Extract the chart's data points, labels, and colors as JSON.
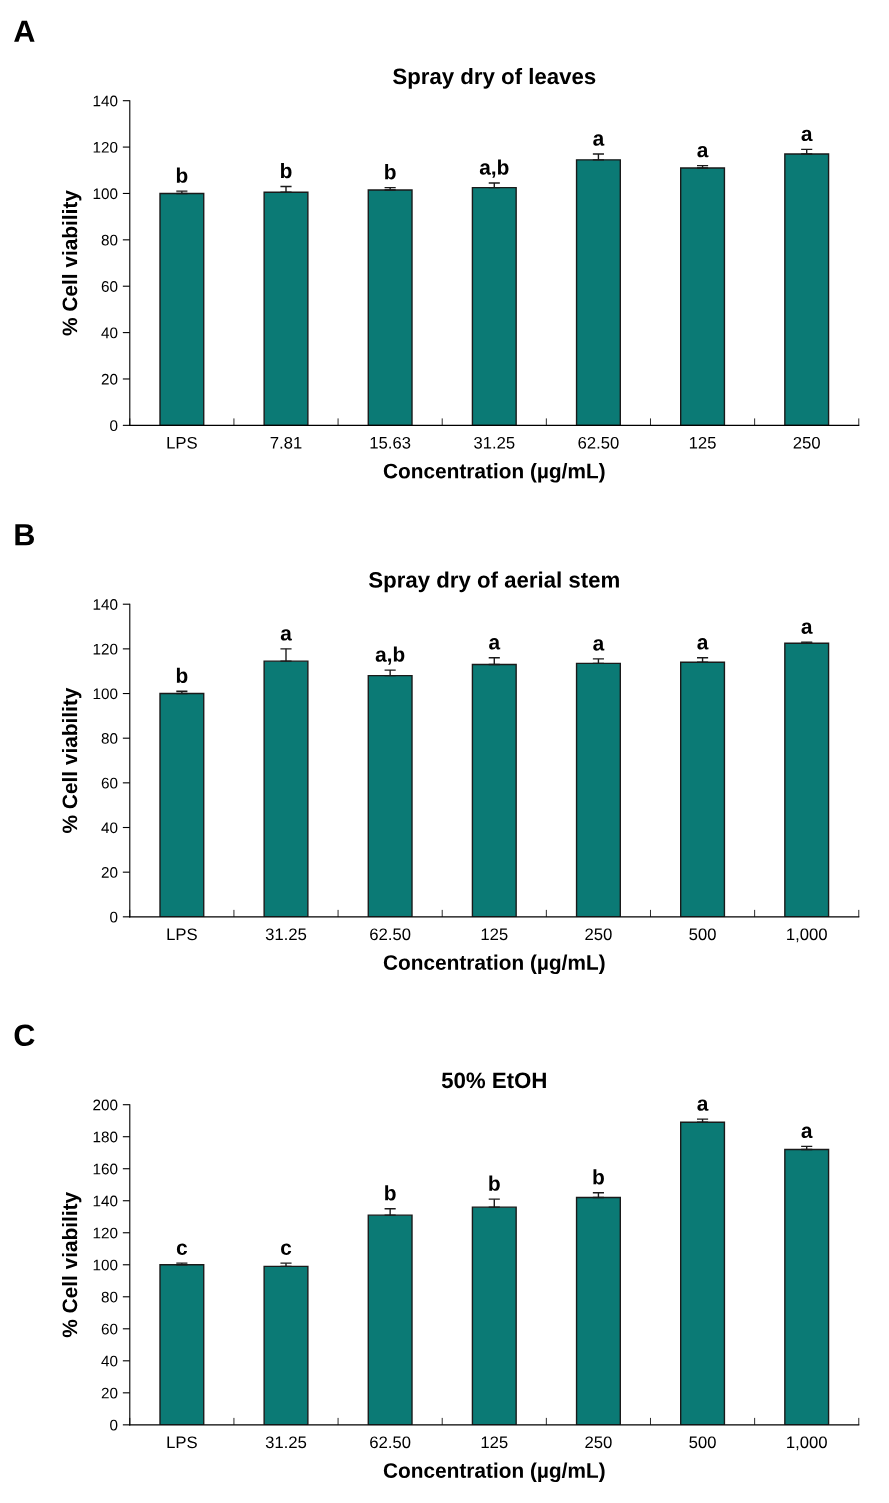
{
  "chart_data": [
    {
      "type": "bar",
      "title": "Spray dry of leaves",
      "xlabel": "Concentration (µg/mL)",
      "ylabel": "% Cell viability",
      "categories": [
        "LPS",
        "7.81",
        "15.63",
        "31.25",
        "62.50",
        "125",
        "250"
      ],
      "values": [
        100,
        100.5,
        101.5,
        102.5,
        114.5,
        111,
        117
      ],
      "color": "#0b7a75",
      "errors": [
        [
          100,
          101
        ],
        [
          100.5,
          103
        ],
        [
          101.5,
          102.5
        ],
        [
          102.5,
          104.5
        ],
        [
          114.5,
          117
        ],
        [
          111,
          112
        ],
        [
          117,
          119
        ]
      ],
      "ylim": [
        0,
        140
      ],
      "yticks": [
        0,
        20,
        40,
        60,
        80,
        100,
        120,
        140
      ],
      "grid": false,
      "annotations": [
        "A",
        {
          "text": "b",
          "x": "LPS",
          "y": 101
        },
        {
          "text": "b",
          "x": "7.81",
          "y": 103
        },
        {
          "text": "b",
          "x": "15.63",
          "y": 102.5
        },
        {
          "text": "a,b",
          "x": "31.25",
          "y": 104.5
        },
        {
          "text": "a",
          "x": "62.50",
          "y": 117
        },
        {
          "text": "a",
          "x": "125",
          "y": 112
        },
        {
          "text": "a",
          "x": "250",
          "y": 119
        }
      ]
    },
    {
      "type": "bar",
      "title": "Spray dry of aerial stem",
      "xlabel": "Concentration (µg/mL)",
      "ylabel": "% Cell viability",
      "categories": [
        "LPS",
        "31.25",
        "62.50",
        "125",
        "250",
        "500",
        "1,000"
      ],
      "values": [
        100,
        114.5,
        108,
        113,
        113.5,
        114,
        122.5
      ],
      "color": "#0b7a75",
      "errors": [
        [
          100,
          101
        ],
        [
          114.5,
          120
        ],
        [
          108,
          110.5
        ],
        [
          113,
          116
        ],
        [
          113.5,
          115.5
        ],
        [
          114,
          116
        ],
        [
          122.5,
          123
        ]
      ],
      "ylim": [
        0,
        140
      ],
      "yticks": [
        0,
        20,
        40,
        60,
        80,
        100,
        120,
        140
      ],
      "grid": false,
      "annotations": [
        "B",
        {
          "text": "b",
          "x": "LPS",
          "y": 101
        },
        {
          "text": "a",
          "x": "31.25",
          "y": 120
        },
        {
          "text": "a,b",
          "x": "62.50",
          "y": 110.5
        },
        {
          "text": "a",
          "x": "125",
          "y": 116
        },
        {
          "text": "a",
          "x": "250",
          "y": 115.5
        },
        {
          "text": "a",
          "x": "500",
          "y": 116
        },
        {
          "text": "a",
          "x": "1,000",
          "y": 123
        }
      ]
    },
    {
      "type": "bar",
      "title": "50% EtOH",
      "xlabel": "Concentration (µg/mL)",
      "ylabel": "% Cell viability",
      "categories": [
        "LPS",
        "31.25",
        "62.50",
        "125",
        "250",
        "500",
        "1,000"
      ],
      "values": [
        100,
        99,
        131,
        136,
        142,
        189,
        172
      ],
      "color": "#0b7a75",
      "errors": [
        [
          100,
          101
        ],
        [
          99,
          101
        ],
        [
          131,
          135
        ],
        [
          136,
          141
        ],
        [
          142,
          145
        ],
        [
          189,
          191
        ],
        [
          172,
          174
        ]
      ],
      "ylim": [
        0,
        200
      ],
      "yticks": [
        0,
        20,
        40,
        60,
        80,
        100,
        120,
        140,
        160,
        180,
        200
      ],
      "grid": false,
      "annotations": [
        "C",
        {
          "text": "c",
          "x": "LPS",
          "y": 101
        },
        {
          "text": "c",
          "x": "31.25",
          "y": 101
        },
        {
          "text": "b",
          "x": "62.50",
          "y": 135
        },
        {
          "text": "b",
          "x": "125",
          "y": 141
        },
        {
          "text": "b",
          "x": "250",
          "y": 145
        },
        {
          "text": "a",
          "x": "500",
          "y": 191
        },
        {
          "text": "a",
          "x": "1,000",
          "y": 174
        }
      ]
    }
  ]
}
